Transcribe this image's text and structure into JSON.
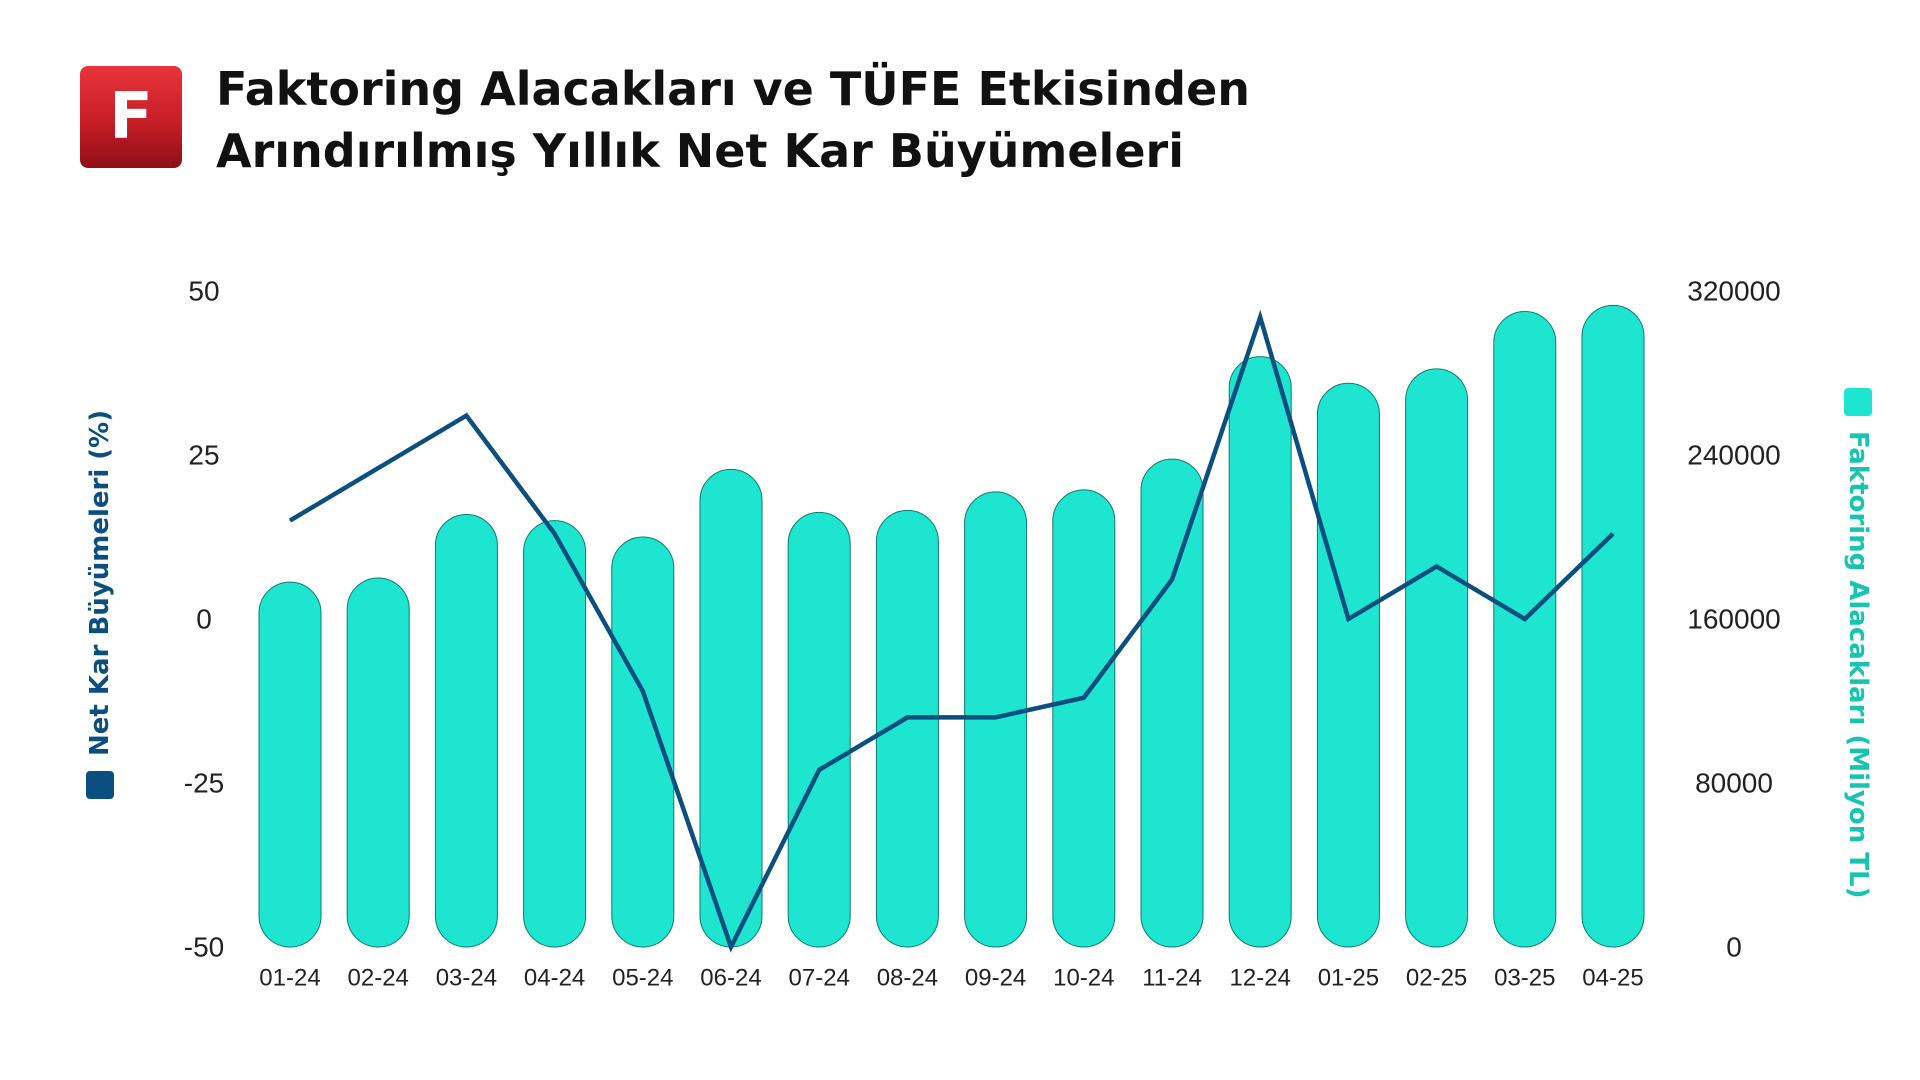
{
  "logo": {
    "letter": "F",
    "colors": {
      "top": "#e8343c",
      "bottom": "#8e0f16"
    }
  },
  "title": {
    "line1": "Faktoring Alacakları ve TÜFE Etkisinden",
    "line2": "Arındırılmış Yıllık Net Kar Büyümeleri"
  },
  "colors": {
    "bar": "#1de5d0",
    "bar_stroke": "#0f7a6f",
    "line": "#0b4f80",
    "left_axis_label": "#0b4f80",
    "right_axis_label": "#17c4b2"
  },
  "chart_data": {
    "type": "bar+line",
    "categories": [
      "01-24",
      "02-24",
      "03-24",
      "04-24",
      "05-24",
      "06-24",
      "07-24",
      "08-24",
      "09-24",
      "10-24",
      "11-24",
      "12-24",
      "01-25",
      "02-25",
      "03-25",
      "04-25"
    ],
    "series": [
      {
        "name": "Faktoring Alacakları (Milyon TL)",
        "type": "bar",
        "axis": "right",
        "values": [
          178000,
          180000,
          211000,
          208000,
          200000,
          233000,
          212000,
          213000,
          222000,
          223000,
          238000,
          288000,
          275000,
          282000,
          310000,
          313000
        ]
      },
      {
        "name": "Net Kar Büyümeleri (%)",
        "type": "line",
        "axis": "left",
        "values": [
          15,
          23,
          31,
          13,
          -11,
          -50,
          -23,
          -15,
          -15,
          -12,
          6,
          46,
          0,
          8,
          0,
          13
        ]
      }
    ],
    "left_axis": {
      "label": "Net Kar Büyümeleri (%)",
      "ylim": [
        -50,
        50
      ],
      "ticks": [
        "50",
        "25",
        "0",
        "-25",
        "-50"
      ]
    },
    "right_axis": {
      "label": "Faktoring Alacakları (Milyon TL)",
      "ylim": [
        0,
        320000
      ],
      "ticks": [
        "320000",
        "240000",
        "160000",
        "80000",
        "0"
      ]
    },
    "grid": false
  }
}
